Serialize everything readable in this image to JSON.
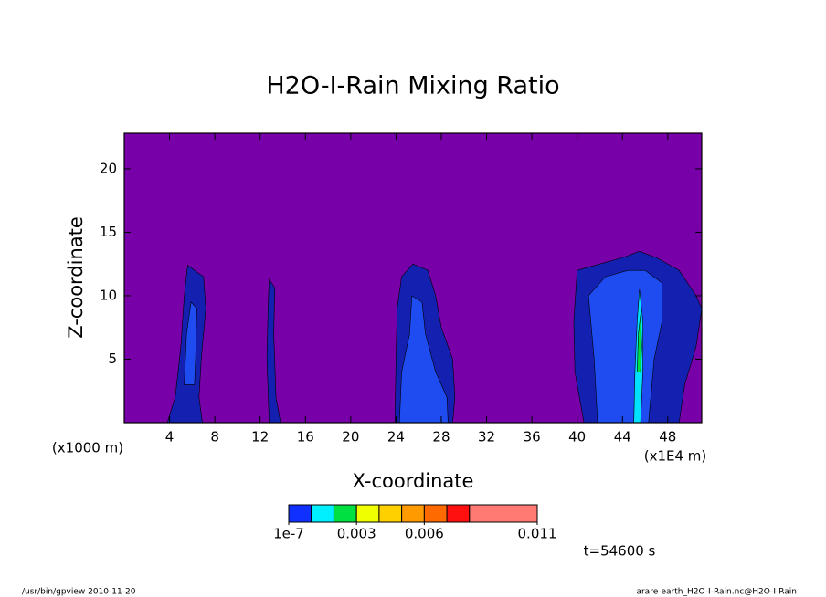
{
  "chart_data": {
    "type": "contour",
    "title": "H2O-I-Rain Mixing Ratio",
    "xlabel": "X-coordinate",
    "ylabel": "Z-coordinate",
    "x_unit": "(x1000 m)",
    "x_unit2": "(x1E4 m)",
    "time_label": "t=54600 s",
    "footer_left": "/usr/bin/gpview  2010-11-20",
    "footer_right": "arare-earth_H2O-I-Rain.nc@H2O-I-Rain",
    "background": "#7800a8",
    "xlim": [
      0,
      51
    ],
    "ylim": [
      0,
      22.8
    ],
    "xticks": [
      4,
      8,
      12,
      16,
      20,
      24,
      28,
      32,
      36,
      40,
      44,
      48
    ],
    "yticks": [
      5,
      10,
      15,
      20
    ],
    "regions": [
      {
        "color": "#1420b0",
        "x": [
          3.8,
          4.5,
          5,
          5.3,
          5.6,
          6.2,
          7,
          7.2,
          6.8,
          6.6,
          6.9
        ],
        "z": [
          0,
          2,
          6,
          10,
          12.4,
          12,
          11.5,
          9,
          5,
          2,
          0
        ]
      },
      {
        "color": "#1e4cf0",
        "x": [
          5.3,
          5.5,
          5.9,
          6.4,
          6.3,
          6.2
        ],
        "z": [
          3,
          7,
          9.5,
          9,
          5,
          3
        ]
      },
      {
        "color": "#1420b0",
        "x": [
          12.8,
          12.6,
          12.7,
          12.8,
          13.3,
          13.2,
          13.4,
          13.8
        ],
        "z": [
          0,
          5,
          9,
          11.3,
          10.6,
          7,
          2,
          0
        ]
      },
      {
        "color": "#1420b0",
        "x": [
          23.9,
          24,
          24.1,
          24.5,
          25.5,
          26.8,
          27.5,
          28,
          29,
          29.2,
          29
        ],
        "z": [
          0,
          5,
          9,
          11.5,
          12.5,
          12,
          10,
          7.5,
          5,
          2,
          0
        ]
      },
      {
        "color": "#1e4cf0",
        "x": [
          24.3,
          24.5,
          25.2,
          25.4,
          26.3,
          26.6,
          27.5,
          28.5,
          28.6
        ],
        "z": [
          0,
          4,
          7,
          10,
          9.5,
          7,
          4,
          2,
          0
        ]
      },
      {
        "color": "#1420b0",
        "x": [
          40.6,
          39.8,
          39.7,
          40,
          42,
          44,
          45.5,
          47,
          49,
          50.5,
          51,
          50.5,
          49.5,
          49
        ],
        "z": [
          0,
          4,
          8,
          12,
          12.5,
          13,
          13.5,
          13,
          12,
          10,
          9,
          6,
          3,
          0
        ]
      },
      {
        "color": "#1e4cf0",
        "x": [
          41.8,
          41.5,
          41,
          42.5,
          44.5,
          46,
          47.5,
          47.5,
          46.8,
          46.5,
          46.3
        ],
        "z": [
          0,
          5,
          10,
          11.5,
          12,
          12,
          11,
          8,
          5,
          2,
          0
        ]
      },
      {
        "color": "#00e0ff",
        "x": [
          45,
          45.1,
          45.3,
          45.5,
          45.8,
          45.8,
          45.6
        ],
        "z": [
          0,
          4,
          8,
          10.5,
          8,
          4,
          0
        ]
      },
      {
        "color": "#00e040",
        "x": [
          45.3,
          45.4,
          45.6,
          45.7,
          45.6
        ],
        "z": [
          4,
          7,
          8.5,
          6,
          4
        ]
      }
    ],
    "colorbar": {
      "colors": [
        "#1030ff",
        "#00f0ff",
        "#00e040",
        "#f0ff00",
        "#ffd000",
        "#ff9a00",
        "#ff6a00",
        "#ff1010",
        "#ff7a72"
      ],
      "bounds": [
        1e-07,
        0.001,
        0.002,
        0.003,
        0.004,
        0.005,
        0.006,
        0.007,
        0.008,
        0.011
      ],
      "ticks": [
        {
          "value": 1e-07,
          "label": "1e-7"
        },
        0.003,
        0.006,
        0.011
      ]
    }
  }
}
